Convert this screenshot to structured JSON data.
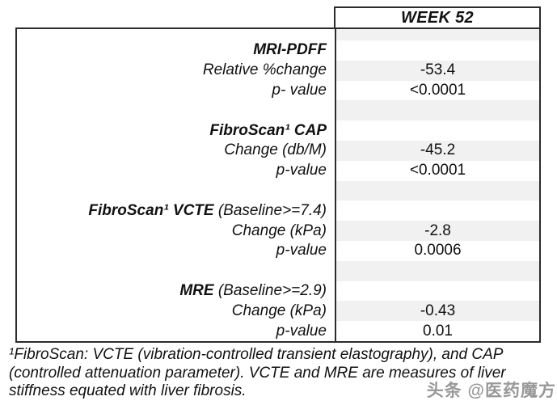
{
  "header": {
    "column_header": "WEEK 52"
  },
  "table": {
    "rows": [
      {
        "strong": "",
        "label": "",
        "value": ""
      },
      {
        "strong": "MRI-PDFF",
        "label": "",
        "value": ""
      },
      {
        "strong": "",
        "label": "Relative %change",
        "value": "-53.4"
      },
      {
        "strong": "",
        "label": "p- value",
        "value": "<0.0001"
      },
      {
        "strong": "",
        "label": "",
        "value": ""
      },
      {
        "strong": "FibroScan¹ CAP",
        "label": "",
        "value": ""
      },
      {
        "strong": "",
        "label": "Change (db/M)",
        "value": "-45.2"
      },
      {
        "strong": "",
        "label": "p-value",
        "value": "<0.0001"
      },
      {
        "strong": "",
        "label": "",
        "value": ""
      },
      {
        "strong": "FibroScan¹ VCTE",
        "label": " (Baseline>=7.4)",
        "value": ""
      },
      {
        "strong": "",
        "label": "Change (kPa)",
        "value": "-2.8"
      },
      {
        "strong": "",
        "label": "p-value",
        "value": "0.0006"
      },
      {
        "strong": "",
        "label": "",
        "value": ""
      },
      {
        "strong": "MRE",
        "label": " (Baseline>=2.9)",
        "value": ""
      },
      {
        "strong": "",
        "label": "Change (kPa)",
        "value": "-0.43"
      },
      {
        "strong": "",
        "label": "p-value",
        "value": "0.01"
      }
    ]
  },
  "footnote": "¹FibroScan: VCTE (vibration-controlled transient elastography), and CAP (controlled attenuation parameter). VCTE and MRE are measures of liver stiffness equated with liver fibrosis.",
  "watermark": "头条 @医药魔方",
  "colors": {
    "border": "#2b2b2b",
    "stripe": "#f1f1f1",
    "text": "#111111",
    "watermark_gray": "#999999",
    "background": "#ffffff"
  }
}
